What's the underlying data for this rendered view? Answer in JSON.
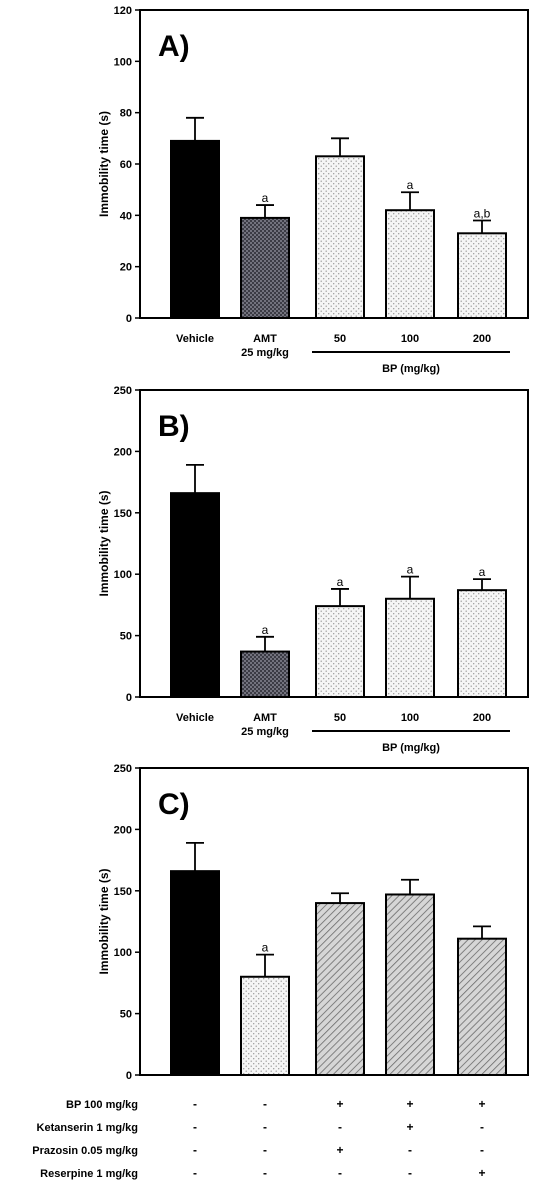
{
  "colors": {
    "black": "#000000",
    "dark_dots": "#4a4a52",
    "light_dots": "#f1f1f1",
    "hatch": "#bdbdbd"
  },
  "chart_data": [
    {
      "type": "bar",
      "panel_label": "A)",
      "ylabel": "Immobility time (s)",
      "ylim": [
        0,
        120
      ],
      "yticks": [
        0,
        20,
        40,
        60,
        80,
        100,
        120
      ],
      "categories": [
        "Vehicle",
        "AMT\n25 mg/kg",
        "50",
        "100",
        "200"
      ],
      "values": [
        69,
        39,
        63,
        42,
        33
      ],
      "errors": [
        9,
        5,
        7,
        7,
        5
      ],
      "fills": [
        "black",
        "dark_dots",
        "light_dots",
        "light_dots",
        "light_dots"
      ],
      "significance": [
        "",
        "a",
        "",
        "a",
        "a,b"
      ],
      "group_label": {
        "text": "BP (mg/kg)",
        "from": 2,
        "to": 4
      }
    },
    {
      "type": "bar",
      "panel_label": "B)",
      "ylabel": "Immobility time (s)",
      "ylim": [
        0,
        250
      ],
      "yticks": [
        0,
        50,
        100,
        150,
        200,
        250
      ],
      "categories": [
        "Vehicle",
        "AMT\n25 mg/kg",
        "50",
        "100",
        "200"
      ],
      "values": [
        166,
        37,
        74,
        80,
        87
      ],
      "errors": [
        23,
        12,
        14,
        18,
        9
      ],
      "fills": [
        "black",
        "dark_dots",
        "light_dots",
        "light_dots",
        "light_dots"
      ],
      "significance": [
        "",
        "a",
        "a",
        "a",
        "a"
      ],
      "group_label": {
        "text": "BP (mg/kg)",
        "from": 2,
        "to": 4
      }
    },
    {
      "type": "bar",
      "panel_label": "C)",
      "ylabel": "Immobility time (s)",
      "ylim": [
        0,
        250
      ],
      "yticks": [
        0,
        50,
        100,
        150,
        200,
        250
      ],
      "categories": [
        "",
        "",
        "",
        "",
        ""
      ],
      "values": [
        166,
        80,
        140,
        147,
        111
      ],
      "errors": [
        23,
        18,
        8,
        12,
        10
      ],
      "fills": [
        "black",
        "light_dots",
        "hatch",
        "hatch",
        "hatch"
      ],
      "significance": [
        "",
        "a",
        "",
        "",
        ""
      ],
      "conditions": [
        {
          "label": "BP 100 mg/kg",
          "marks": [
            "-",
            "-",
            "+",
            "+",
            "+"
          ]
        },
        {
          "label": "Ketanserin 1 mg/kg",
          "marks": [
            "-",
            "-",
            "-",
            "+",
            "-"
          ]
        },
        {
          "label": "Prazosin 0.05 mg/kg",
          "marks": [
            "-",
            "-",
            "+",
            "-",
            "-"
          ]
        },
        {
          "label": "Reserpine 1 mg/kg",
          "marks": [
            "-",
            "-",
            "-",
            "-",
            "+"
          ]
        }
      ]
    }
  ]
}
